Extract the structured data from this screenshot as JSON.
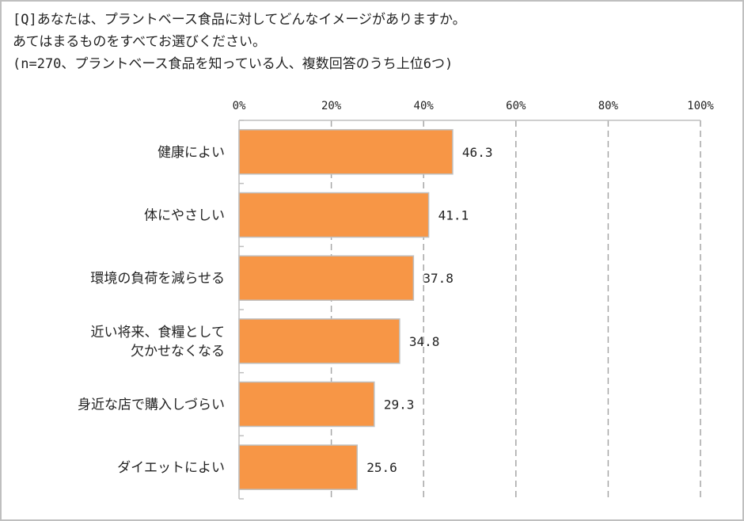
{
  "chart_data": {
    "type": "bar",
    "orientation": "horizontal",
    "title_lines": [
      "[Q]あなたは、プラントベース食品に対してどんなイメージがありますか。",
      "あてはまるものをすべてお選びください。",
      "(n=270、プラントベース食品を知っている人、複数回答のうち上位6つ)"
    ],
    "categories": [
      [
        "健康によい"
      ],
      [
        "体にやさしい"
      ],
      [
        "環境の負荷を減らせる"
      ],
      [
        "近い将来、食糧として",
        "欠かせなくなる"
      ],
      [
        "身近な店で購入しづらい"
      ],
      [
        "ダイエットによい"
      ]
    ],
    "values": [
      46.3,
      41.1,
      37.8,
      34.8,
      29.3,
      25.6
    ],
    "value_labels": [
      "46.3",
      "41.1",
      "37.8",
      "34.8",
      "29.3",
      "25.6"
    ],
    "xlim": [
      0,
      100
    ],
    "x_ticks": [
      "0%",
      "20%",
      "40%",
      "60%",
      "80%",
      "100%"
    ],
    "x_axis_position": "top",
    "grid": "vertical dashed",
    "bar_color": "#F79646",
    "bar_border_color": "#BFBFBF",
    "grid_color": "#A6A6A6"
  }
}
